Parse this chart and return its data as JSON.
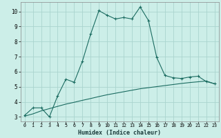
{
  "xlabel": "Humidex (Indice chaleur)",
  "background_color": "#cceee8",
  "grid_color": "#aad4ce",
  "line_color": "#1a6b60",
  "xlim": [
    -0.5,
    23.5
  ],
  "ylim": [
    2.7,
    10.6
  ],
  "xticks": [
    0,
    1,
    2,
    3,
    4,
    5,
    6,
    7,
    8,
    9,
    10,
    11,
    12,
    13,
    14,
    15,
    16,
    17,
    18,
    19,
    20,
    21,
    22,
    23
  ],
  "yticks": [
    3,
    4,
    5,
    6,
    7,
    8,
    9,
    10
  ],
  "line1_x": [
    0,
    1,
    2,
    3,
    4,
    5,
    6,
    7,
    8,
    9,
    10,
    11,
    12,
    13,
    14,
    15,
    16,
    17,
    18,
    19,
    20,
    21,
    22,
    23
  ],
  "line1_y": [
    3.1,
    3.6,
    3.6,
    3.0,
    4.4,
    5.5,
    5.3,
    6.7,
    8.5,
    10.05,
    9.75,
    9.5,
    9.6,
    9.5,
    10.3,
    9.4,
    6.95,
    5.75,
    5.6,
    5.55,
    5.65,
    5.7,
    5.35,
    5.2
  ],
  "line2_x": [
    0,
    1,
    2,
    3,
    4,
    5,
    6,
    7,
    8,
    9,
    10,
    11,
    12,
    13,
    14,
    15,
    16,
    17,
    18,
    19,
    20,
    21,
    22,
    23
  ],
  "line2_y": [
    3.05,
    3.2,
    3.4,
    3.55,
    3.7,
    3.85,
    3.97,
    4.1,
    4.22,
    4.35,
    4.47,
    4.57,
    4.67,
    4.77,
    4.87,
    4.94,
    5.01,
    5.08,
    5.15,
    5.22,
    5.28,
    5.33,
    5.38,
    5.2
  ]
}
